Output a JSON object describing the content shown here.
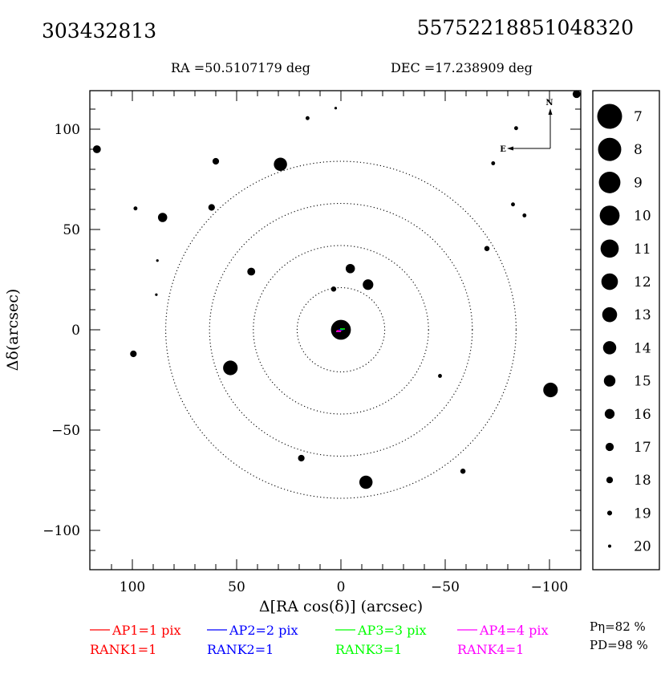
{
  "header": {
    "left_id": "303432813",
    "right_id": "557522188510483​20",
    "ra_label": "RA =50.5107179 deg",
    "dec_label": "DEC =17.238909 deg"
  },
  "chart_data": {
    "type": "scatter",
    "xlabel": "Δ[RA cos(δ)] (arcsec)",
    "ylabel": "Δδ(arcsec)",
    "xlim": [
      115,
      -115
    ],
    "ylim": [
      -120,
      118
    ],
    "x_ticks": [
      100,
      50,
      0,
      -50,
      -100
    ],
    "y_ticks": [
      100,
      50,
      0,
      -50,
      -100
    ],
    "x_tick_labels": [
      "100",
      "50",
      "0",
      "−50",
      "−100"
    ],
    "y_tick_labels": [
      "100",
      "50",
      "0",
      "−50",
      "−100"
    ],
    "circle_radii": [
      21,
      42,
      63,
      84
    ],
    "compass": {
      "north": "N",
      "east": "E"
    },
    "sources": [
      {
        "x": 0,
        "y": 0,
        "mag": 7
      },
      {
        "x": -4.5,
        "y": 30.5,
        "mag": 15
      },
      {
        "x": -13,
        "y": 22.5,
        "mag": 14
      },
      {
        "x": 3.5,
        "y": 20.3,
        "mag": 18
      },
      {
        "x": 43,
        "y": 29,
        "mag": 16
      },
      {
        "x": 53,
        "y": -19,
        "mag": 11
      },
      {
        "x": 29,
        "y": 82.5,
        "mag": 12
      },
      {
        "x": 60,
        "y": 84,
        "mag": 17
      },
      {
        "x": 62,
        "y": 61,
        "mag": 17
      },
      {
        "x": 85.5,
        "y": 56,
        "mag": 15
      },
      {
        "x": 98.5,
        "y": 60.5,
        "mag": 19
      },
      {
        "x": 88,
        "y": 34.5,
        "mag": 20
      },
      {
        "x": 88.5,
        "y": 17.5,
        "mag": 20
      },
      {
        "x": 99.5,
        "y": -12,
        "mag": 17
      },
      {
        "x": 117,
        "y": 90,
        "mag": 16
      },
      {
        "x": 16,
        "y": 105.5,
        "mag": 19
      },
      {
        "x": 2.5,
        "y": 110.5,
        "mag": 20
      },
      {
        "x": -12,
        "y": -76,
        "mag": 12
      },
      {
        "x": 19,
        "y": -64,
        "mag": 17
      },
      {
        "x": -47.5,
        "y": -23,
        "mag": 19
      },
      {
        "x": -58.5,
        "y": -70.5,
        "mag": 18
      },
      {
        "x": -70,
        "y": 40.5,
        "mag": 18
      },
      {
        "x": -73,
        "y": 83,
        "mag": 19
      },
      {
        "x": -84,
        "y": 100.5,
        "mag": 19
      },
      {
        "x": -82.5,
        "y": 62.5,
        "mag": 19
      },
      {
        "x": -88,
        "y": 57,
        "mag": 19
      },
      {
        "x": -100.5,
        "y": -30,
        "mag": 11
      },
      {
        "x": -113,
        "y": 117.5,
        "mag": 16
      }
    ],
    "legend": {
      "placement": "right",
      "magnitudes": [
        7,
        8,
        9,
        10,
        11,
        12,
        13,
        14,
        15,
        16,
        17,
        18,
        19,
        20
      ]
    },
    "apertures": [
      {
        "label": "AP1=1 pix",
        "rank": "RANK1=1",
        "color": "#ff0000"
      },
      {
        "label": "AP2=2 pix",
        "rank": "RANK2=1",
        "color": "#0000ff"
      },
      {
        "label": "AP3=3 pix",
        "rank": "RANK3=1",
        "color": "#00ff00"
      },
      {
        "label": "AP4=4 pix",
        "rank": "RANK4=1",
        "color": "#ff00ff"
      }
    ],
    "stats": {
      "p_eta": "Pη=82 %",
      "p_d": "PD=98 %"
    }
  }
}
